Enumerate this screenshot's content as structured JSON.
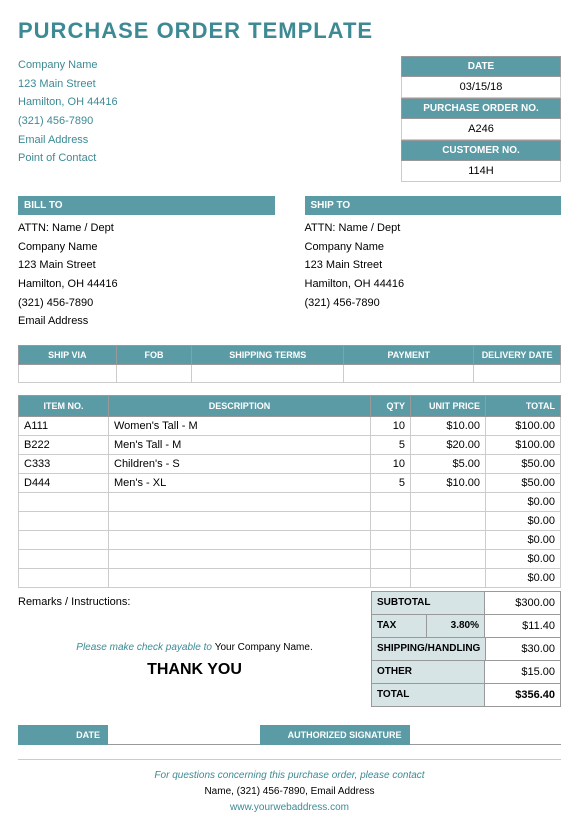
{
  "title": "PURCHASE ORDER TEMPLATE",
  "company": {
    "name": "Company Name",
    "street": "123 Main Street",
    "city": "Hamilton, OH 44416",
    "phone": "(321) 456-7890",
    "email": "Email Address",
    "contact": "Point of Contact"
  },
  "meta": {
    "date_label": "DATE",
    "date": "03/15/18",
    "po_label": "PURCHASE ORDER NO.",
    "po": "A246",
    "cust_label": "CUSTOMER NO.",
    "cust": "114H"
  },
  "billto": {
    "header": "BILL TO",
    "attn": "ATTN: Name / Dept",
    "name": "Company Name",
    "street": "123 Main Street",
    "city": "Hamilton, OH 44416",
    "phone": "(321) 456-7890",
    "email": "Email Address"
  },
  "shipto": {
    "header": "SHIP TO",
    "attn": "ATTN: Name / Dept",
    "name": "Company Name",
    "street": "123 Main Street",
    "city": "Hamilton, OH 44416",
    "phone": "(321) 456-7890"
  },
  "shipcols": {
    "via": "SHIP VIA",
    "fob": "FOB",
    "terms": "SHIPPING TERMS",
    "payment": "PAYMENT",
    "delivery": "DELIVERY DATE"
  },
  "itemcols": {
    "item": "ITEM NO.",
    "desc": "DESCRIPTION",
    "qty": "QTY",
    "price": "UNIT PRICE",
    "total": "TOTAL"
  },
  "items": [
    {
      "no": "A111",
      "desc": "Women's Tall - M",
      "qty": "10",
      "price": "$10.00",
      "total": "$100.00"
    },
    {
      "no": "B222",
      "desc": "Men's Tall - M",
      "qty": "5",
      "price": "$20.00",
      "total": "$100.00"
    },
    {
      "no": "C333",
      "desc": "Children's - S",
      "qty": "10",
      "price": "$5.00",
      "total": "$50.00"
    },
    {
      "no": "D444",
      "desc": "Men's - XL",
      "qty": "5",
      "price": "$10.00",
      "total": "$50.00"
    },
    {
      "no": "",
      "desc": "",
      "qty": "",
      "price": "",
      "total": "$0.00"
    },
    {
      "no": "",
      "desc": "",
      "qty": "",
      "price": "",
      "total": "$0.00"
    },
    {
      "no": "",
      "desc": "",
      "qty": "",
      "price": "",
      "total": "$0.00"
    },
    {
      "no": "",
      "desc": "",
      "qty": "",
      "price": "",
      "total": "$0.00"
    },
    {
      "no": "",
      "desc": "",
      "qty": "",
      "price": "",
      "total": "$0.00"
    }
  ],
  "remarks_label": "Remarks / Instructions:",
  "payable_prefix": "Please make check payable to ",
  "payable_name": "Your Company Name.",
  "thanks": "THANK YOU",
  "totals": {
    "subtotal_label": "SUBTOTAL",
    "subtotal": "$300.00",
    "tax_label": "TAX",
    "tax_pct": "3.80%",
    "tax": "$11.40",
    "ship_label": "SHIPPING/HANDLING",
    "ship": "$30.00",
    "other_label": "OTHER",
    "other": "$15.00",
    "total_label": "TOTAL",
    "total": "$356.40"
  },
  "sign": {
    "date": "DATE",
    "sig": "AUTHORIZED SIGNATURE"
  },
  "footer": {
    "line1": "For questions concerning this purchase order, please contact",
    "line2": "Name, (321) 456-7890, Email Address",
    "url": "www.yourwebaddress.com"
  }
}
